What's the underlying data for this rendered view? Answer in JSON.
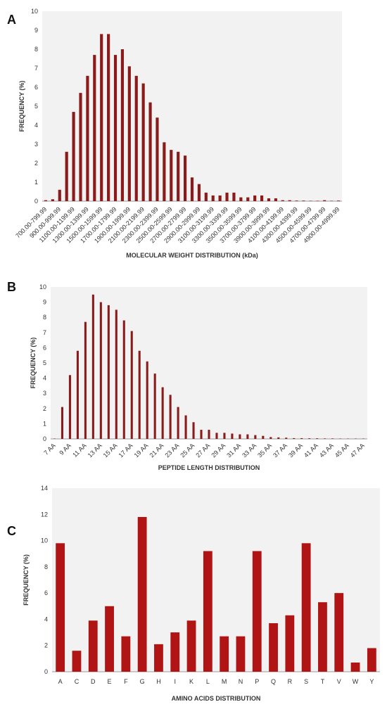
{
  "chart_data": [
    {
      "panel_label": "A",
      "type": "bar",
      "xlabel": "MOLECULAR WEIGHT DISTRIBUTION (kDa)",
      "ylabel": "FREQUENCY (%)",
      "ylim": [
        0,
        10
      ],
      "y_ticks": [
        0,
        1,
        2,
        3,
        4,
        5,
        6,
        7,
        8,
        9,
        10
      ],
      "grid": false,
      "categories": [
        "700.00-799.99",
        "800.00-899.99",
        "900.00-999.99",
        "1000.00-1099.99",
        "1100.00-1199.99",
        "1200.00-1299.99",
        "1300.00-1399.99",
        "1400.00-1499.99",
        "1500.00-1599.99",
        "1600.00-1699.99",
        "1700.00-1799.99",
        "1800.00-1899.99",
        "1900.00-1999.99",
        "2000.00-2099.99",
        "2100.00-2199.99",
        "2200.00-2299.99",
        "2300.00-2399.99",
        "2400.00-2499.99",
        "2500.00-2599.99",
        "2600.00-2699.99",
        "2700.00-2799.99",
        "2800.00-2899.99",
        "2900.00-2999.99",
        "3000.00-3099.99",
        "3100.00-3199.99",
        "3200.00-3299.99",
        "3300.00-3399.99",
        "3400.00-3499.99",
        "3500.00-3599.99",
        "3600.00-3699.99",
        "3700.00-3799.99",
        "3800.00-3899.99",
        "3900.00-3999.99",
        "4000.00-4099.99",
        "4100.00-4199.99",
        "4200.00-4299.99",
        "4300.00-4399.99",
        "4400.00-4499.99",
        "4500.00-4599.99",
        "4600.00-4699.99",
        "4700.00-4799.99",
        "4800.00-4899.99",
        "4900.00-4999.99"
      ],
      "x_tick_labels": [
        "700.00-799.99",
        "",
        "900.00-999.99",
        "",
        "1100.00-1199.99",
        "",
        "1300.00-1399.99",
        "",
        "1500.00-1599.99",
        "",
        "1700.00-1799.99",
        "",
        "1900.00-1999.99",
        "",
        "2100.00-2199.99",
        "",
        "2300.00-2399.99",
        "",
        "2500.00-2599.99",
        "",
        "2700.00-2799.99",
        "",
        "2900.00-2999.99",
        "",
        "3100.00-3199.99",
        "",
        "3300.00-3399.99",
        "",
        "3500.00-3599.99",
        "",
        "3700.00-3799.99",
        "",
        "3900.00-3999.99",
        "",
        "4100.00-4199.99",
        "",
        "4300.00-4399.99",
        "",
        "4500.00-4599.99",
        "",
        "4700.00-4799.99",
        "",
        "4900.00-4999.99"
      ],
      "values": [
        0.05,
        0.1,
        0.6,
        2.6,
        4.7,
        5.7,
        6.6,
        7.7,
        8.8,
        8.8,
        7.7,
        8.0,
        7.1,
        6.6,
        6.2,
        5.2,
        4.4,
        3.1,
        2.7,
        2.6,
        2.4,
        1.25,
        0.9,
        0.45,
        0.3,
        0.3,
        0.45,
        0.45,
        0.2,
        0.2,
        0.3,
        0.3,
        0.15,
        0.15,
        0.05,
        0.05,
        0.03,
        0.03,
        0.02,
        0.02,
        0.05,
        0.02,
        0.03
      ],
      "bar_color": "#8b1a1a",
      "plot_background": "#f2f2f2"
    },
    {
      "panel_label": "B",
      "type": "bar",
      "xlabel": "PEPTIDE LENGTH DISTRIBUTION",
      "ylabel": "FREQUENCY (%)",
      "ylim": [
        0,
        10
      ],
      "y_ticks": [
        0,
        1,
        2,
        3,
        4,
        5,
        6,
        7,
        8,
        9,
        10
      ],
      "grid": false,
      "categories": [
        "7 AA",
        "8 AA",
        "9 AA",
        "10 AA",
        "11 AA",
        "12 AA",
        "13 AA",
        "14 AA",
        "15 AA",
        "16 AA",
        "17 AA",
        "18 AA",
        "19 AA",
        "20 AA",
        "21 AA",
        "22 AA",
        "23 AA",
        "24 AA",
        "25 AA",
        "26 AA",
        "27 AA",
        "28 AA",
        "29 AA",
        "30 AA",
        "31 AA",
        "32 AA",
        "33 AA",
        "34 AA",
        "35 AA",
        "36 AA",
        "37 AA",
        "38 AA",
        "39 AA",
        "40 AA",
        "41 AA",
        "42 AA",
        "43 AA",
        "44 AA",
        "45 AA",
        "46 AA",
        "47 AA"
      ],
      "x_tick_labels": [
        "7 AA",
        "",
        "9 AA",
        "",
        "11 AA",
        "",
        "13 AA",
        "",
        "15 AA",
        "",
        "17 AA",
        "",
        "19 AA",
        "",
        "21 AA",
        "",
        "23 AA",
        "",
        "25 AA",
        "",
        "27 AA",
        "",
        "29 AA",
        "",
        "31 AA",
        "",
        "33 AA",
        "",
        "35 AA",
        "",
        "37 AA",
        "",
        "39 AA",
        "",
        "41 AA",
        "",
        "43 AA",
        "",
        "45 AA",
        "",
        "47 AA"
      ],
      "values": [
        0.02,
        2.1,
        4.2,
        5.8,
        7.7,
        9.5,
        9.0,
        8.8,
        8.5,
        7.8,
        7.1,
        5.8,
        5.1,
        4.3,
        3.4,
        2.9,
        2.1,
        1.55,
        1.1,
        0.6,
        0.6,
        0.4,
        0.4,
        0.35,
        0.3,
        0.3,
        0.25,
        0.2,
        0.12,
        0.1,
        0.08,
        0.05,
        0.05,
        0.04,
        0.04,
        0.03,
        0.03,
        0.02,
        0.02,
        0.02,
        0.02
      ],
      "bar_color": "#8b1a1a",
      "plot_background": "#f2f2f2"
    },
    {
      "panel_label": "C",
      "type": "bar",
      "xlabel": "AMINO ACIDS DISTRIBUTION",
      "ylabel": "FREQUENCY (%)",
      "ylim": [
        0,
        14
      ],
      "y_ticks": [
        0,
        2,
        4,
        6,
        8,
        10,
        12,
        14
      ],
      "grid": false,
      "categories": [
        "A",
        "C",
        "D",
        "E",
        "F",
        "G",
        "H",
        "I",
        "K",
        "L",
        "M",
        "N",
        "P",
        "Q",
        "R",
        "S",
        "T",
        "V",
        "W",
        "Y"
      ],
      "x_tick_labels": [
        "A",
        "C",
        "D",
        "E",
        "F",
        "G",
        "H",
        "I",
        "K",
        "L",
        "M",
        "N",
        "P",
        "Q",
        "R",
        "S",
        "T",
        "V",
        "W",
        "Y"
      ],
      "values": [
        9.8,
        1.6,
        3.9,
        5.0,
        2.7,
        11.8,
        2.1,
        3.0,
        3.9,
        9.2,
        2.7,
        2.7,
        9.2,
        3.7,
        4.3,
        9.8,
        5.3,
        6.0,
        0.7,
        1.8
      ],
      "bar_color": "#b01414",
      "plot_background": "#f2f2f2"
    }
  ]
}
